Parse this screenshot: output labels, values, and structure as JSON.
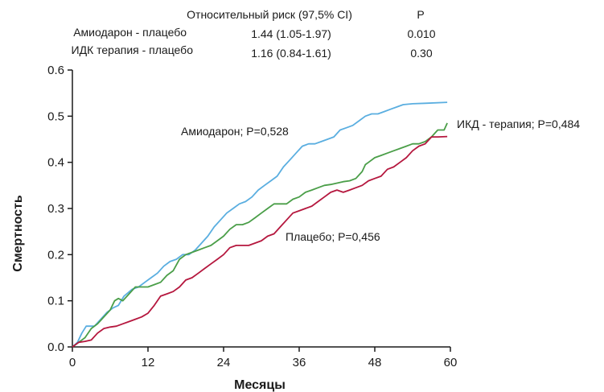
{
  "header": {
    "col_rr": "Относительный риск (97,5% CI)",
    "col_p": "P",
    "rows": [
      {
        "label": "Амиодарон - плацебо",
        "rr": "1.44 (1.05-1.97)",
        "p": "0.010"
      },
      {
        "label": "ИДК терапия - плацебо",
        "rr": "1.16 (0.84-1.61)",
        "p": "0.30"
      }
    ]
  },
  "chart_data": {
    "type": "line",
    "xlabel": "Месяцы",
    "ylabel": "Смертность",
    "xlim": [
      0,
      60
    ],
    "ylim": [
      0,
      0.6
    ],
    "x_ticks": [
      0,
      12,
      24,
      36,
      48,
      60
    ],
    "x_tick_labels": [
      "0",
      "12",
      "24",
      "36",
      "48",
      "60"
    ],
    "y_ticks": [
      0,
      0.1,
      0.2,
      0.3,
      0.4,
      0.5,
      0.6
    ],
    "y_tick_labels": [
      "0.0",
      "0.1",
      "0.2",
      "0.3",
      "0.4",
      "0.5",
      "0.6"
    ],
    "grid": false,
    "series": [
      {
        "name": "Амиодарон; P=0,528",
        "color": "#5aaee0",
        "points": [
          [
            0,
            0
          ],
          [
            0.8,
            0.01
          ],
          [
            1.5,
            0.03
          ],
          [
            2.2,
            0.045
          ],
          [
            3.5,
            0.045
          ],
          [
            4.5,
            0.06
          ],
          [
            5.5,
            0.075
          ],
          [
            6.5,
            0.085
          ],
          [
            7.3,
            0.09
          ],
          [
            8.2,
            0.11
          ],
          [
            9.5,
            0.125
          ],
          [
            10.5,
            0.13
          ],
          [
            11.5,
            0.14
          ],
          [
            12.5,
            0.15
          ],
          [
            13.5,
            0.16
          ],
          [
            14.5,
            0.175
          ],
          [
            15.5,
            0.185
          ],
          [
            16.5,
            0.19
          ],
          [
            17.5,
            0.2
          ],
          [
            18.5,
            0.2
          ],
          [
            19.5,
            0.21
          ],
          [
            20.5,
            0.225
          ],
          [
            21.5,
            0.24
          ],
          [
            22.5,
            0.26
          ],
          [
            23.5,
            0.275
          ],
          [
            24.5,
            0.29
          ],
          [
            25.5,
            0.3
          ],
          [
            26.5,
            0.31
          ],
          [
            27.5,
            0.315
          ],
          [
            28.5,
            0.325
          ],
          [
            29.5,
            0.34
          ],
          [
            30.5,
            0.35
          ],
          [
            31.5,
            0.36
          ],
          [
            32.5,
            0.37
          ],
          [
            33.5,
            0.39
          ],
          [
            34.5,
            0.405
          ],
          [
            35.5,
            0.42
          ],
          [
            36.5,
            0.435
          ],
          [
            37.5,
            0.44
          ],
          [
            38.5,
            0.44
          ],
          [
            39.5,
            0.445
          ],
          [
            40.5,
            0.45
          ],
          [
            41.5,
            0.455
          ],
          [
            42.5,
            0.47
          ],
          [
            43.5,
            0.475
          ],
          [
            44.5,
            0.48
          ],
          [
            45.5,
            0.49
          ],
          [
            46.5,
            0.5
          ],
          [
            47.5,
            0.505
          ],
          [
            48.5,
            0.505
          ],
          [
            49.5,
            0.51
          ],
          [
            50.5,
            0.515
          ],
          [
            51.5,
            0.52
          ],
          [
            52.5,
            0.525
          ],
          [
            54,
            0.527
          ],
          [
            56,
            0.528
          ],
          [
            59.5,
            0.53
          ]
        ]
      },
      {
        "name": "ИКД - терапия; P=0,484",
        "color": "#4a9e48",
        "points": [
          [
            0,
            0
          ],
          [
            1,
            0.01
          ],
          [
            2,
            0.02
          ],
          [
            3,
            0.04
          ],
          [
            4,
            0.05
          ],
          [
            5,
            0.065
          ],
          [
            6,
            0.08
          ],
          [
            6.7,
            0.1
          ],
          [
            7.3,
            0.105
          ],
          [
            8,
            0.1
          ],
          [
            9,
            0.115
          ],
          [
            10,
            0.13
          ],
          [
            11,
            0.13
          ],
          [
            12,
            0.13
          ],
          [
            13,
            0.135
          ],
          [
            14,
            0.14
          ],
          [
            15,
            0.155
          ],
          [
            16,
            0.165
          ],
          [
            17,
            0.19
          ],
          [
            18,
            0.2
          ],
          [
            19,
            0.205
          ],
          [
            20,
            0.21
          ],
          [
            21,
            0.215
          ],
          [
            22,
            0.22
          ],
          [
            23,
            0.23
          ],
          [
            24,
            0.24
          ],
          [
            25,
            0.255
          ],
          [
            26,
            0.265
          ],
          [
            27,
            0.265
          ],
          [
            28,
            0.27
          ],
          [
            29,
            0.28
          ],
          [
            30,
            0.29
          ],
          [
            31,
            0.3
          ],
          [
            32,
            0.31
          ],
          [
            33,
            0.31
          ],
          [
            34,
            0.31
          ],
          [
            35,
            0.32
          ],
          [
            36,
            0.325
          ],
          [
            37,
            0.335
          ],
          [
            38,
            0.34
          ],
          [
            39,
            0.345
          ],
          [
            40,
            0.35
          ],
          [
            41,
            0.352
          ],
          [
            42,
            0.355
          ],
          [
            43,
            0.358
          ],
          [
            44,
            0.36
          ],
          [
            45,
            0.365
          ],
          [
            46,
            0.38
          ],
          [
            46.5,
            0.395
          ],
          [
            47,
            0.4
          ],
          [
            48,
            0.41
          ],
          [
            49,
            0.415
          ],
          [
            50,
            0.42
          ],
          [
            51,
            0.425
          ],
          [
            52,
            0.43
          ],
          [
            53,
            0.435
          ],
          [
            54,
            0.44
          ],
          [
            55,
            0.44
          ],
          [
            56,
            0.445
          ],
          [
            57,
            0.455
          ],
          [
            58,
            0.47
          ],
          [
            59,
            0.47
          ],
          [
            59.5,
            0.485
          ]
        ]
      },
      {
        "name": "Плацебо; P=0,456",
        "color": "#b5173e",
        "points": [
          [
            0,
            0
          ],
          [
            1,
            0.01
          ],
          [
            2,
            0.012
          ],
          [
            3,
            0.015
          ],
          [
            4,
            0.03
          ],
          [
            5,
            0.04
          ],
          [
            6,
            0.043
          ],
          [
            7,
            0.045
          ],
          [
            8,
            0.05
          ],
          [
            9,
            0.055
          ],
          [
            10,
            0.06
          ],
          [
            11,
            0.065
          ],
          [
            12,
            0.073
          ],
          [
            13,
            0.09
          ],
          [
            14,
            0.11
          ],
          [
            15,
            0.115
          ],
          [
            16,
            0.12
          ],
          [
            17,
            0.13
          ],
          [
            18,
            0.145
          ],
          [
            19,
            0.15
          ],
          [
            20,
            0.16
          ],
          [
            21,
            0.17
          ],
          [
            22,
            0.18
          ],
          [
            23,
            0.19
          ],
          [
            24,
            0.2
          ],
          [
            25,
            0.215
          ],
          [
            26,
            0.22
          ],
          [
            27,
            0.22
          ],
          [
            28,
            0.22
          ],
          [
            29,
            0.225
          ],
          [
            30,
            0.23
          ],
          [
            31,
            0.24
          ],
          [
            32,
            0.245
          ],
          [
            33,
            0.26
          ],
          [
            34,
            0.275
          ],
          [
            35,
            0.29
          ],
          [
            36,
            0.295
          ],
          [
            37,
            0.3
          ],
          [
            38,
            0.305
          ],
          [
            39,
            0.315
          ],
          [
            40,
            0.325
          ],
          [
            41,
            0.335
          ],
          [
            42,
            0.34
          ],
          [
            43,
            0.335
          ],
          [
            44,
            0.34
          ],
          [
            45,
            0.345
          ],
          [
            46,
            0.35
          ],
          [
            47,
            0.36
          ],
          [
            48,
            0.365
          ],
          [
            49,
            0.37
          ],
          [
            50,
            0.385
          ],
          [
            51,
            0.39
          ],
          [
            52,
            0.4
          ],
          [
            53,
            0.41
          ],
          [
            54,
            0.425
          ],
          [
            55,
            0.435
          ],
          [
            56,
            0.44
          ],
          [
            57,
            0.455
          ],
          [
            58,
            0.455
          ],
          [
            59.5,
            0.456
          ]
        ]
      }
    ]
  }
}
